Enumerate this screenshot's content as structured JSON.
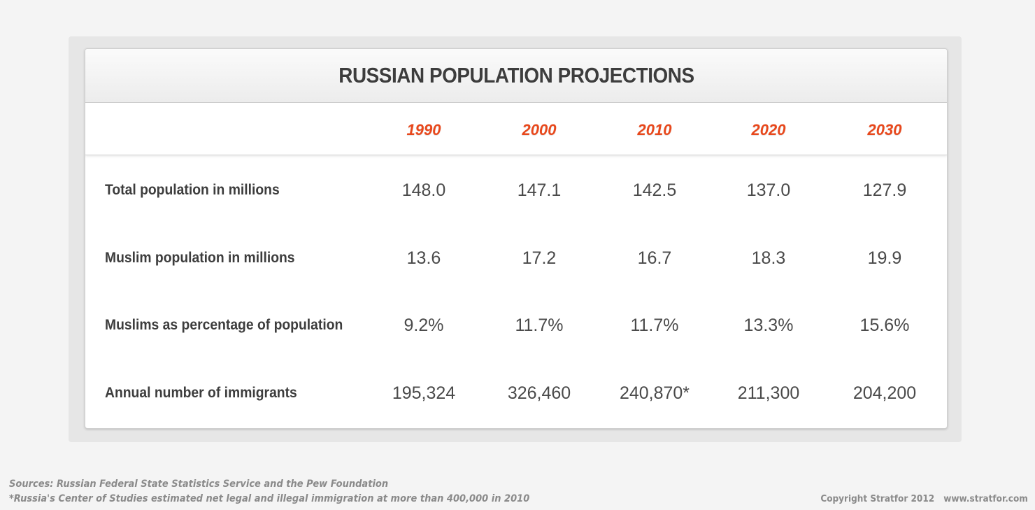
{
  "chart_data": {
    "type": "table",
    "title": "RUSSIAN POPULATION PROJECTIONS",
    "columns": [
      "1990",
      "2000",
      "2010",
      "2020",
      "2030"
    ],
    "rows": [
      {
        "label": "Total population in millions",
        "values": [
          "148.0",
          "147.1",
          "142.5",
          "137.0",
          "127.9"
        ]
      },
      {
        "label": "Muslim population in millions",
        "values": [
          "13.6",
          "17.2",
          "16.7",
          "18.3",
          "19.9"
        ]
      },
      {
        "label": "Muslims as percentage of population",
        "values": [
          "9.2%",
          "11.7%",
          "11.7%",
          "13.3%",
          "15.6%"
        ]
      },
      {
        "label": "Annual number of immigrants",
        "values": [
          "195,324",
          "326,460",
          "240,870*",
          "211,300",
          "204,200"
        ]
      }
    ],
    "year_color": "#e8481c"
  },
  "footer": {
    "sources": "Sources: Russian Federal State Statistics Service and the Pew Foundation",
    "note": "*Russia's Center of Studies estimated net legal and illegal immigration at more than 400,000 in 2010",
    "copyright": "Copyright Stratfor 2012",
    "website": "www.stratfor.com"
  }
}
